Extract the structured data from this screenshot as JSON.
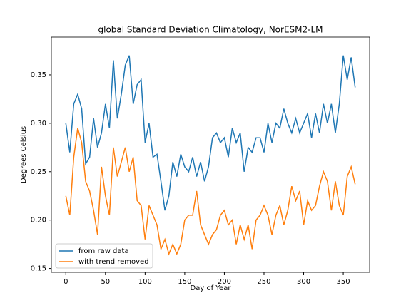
{
  "chart_data": {
    "type": "line",
    "title": "global Standard Deviation Climatology, NorESM2-LM",
    "xlabel": "Day of Year",
    "ylabel": "Degrees Celsius",
    "x": [
      0,
      5,
      10,
      15,
      20,
      25,
      30,
      35,
      40,
      45,
      50,
      55,
      60,
      65,
      70,
      75,
      80,
      85,
      90,
      95,
      100,
      105,
      110,
      115,
      120,
      125,
      130,
      135,
      140,
      145,
      150,
      155,
      160,
      165,
      170,
      175,
      180,
      185,
      190,
      195,
      200,
      205,
      210,
      215,
      220,
      225,
      230,
      235,
      240,
      245,
      250,
      255,
      260,
      265,
      270,
      275,
      280,
      285,
      290,
      295,
      300,
      305,
      310,
      315,
      320,
      325,
      330,
      335,
      340,
      345,
      350,
      355,
      360,
      365
    ],
    "series": [
      {
        "name": "from raw data",
        "color": "#1f77b4",
        "values": [
          0.3,
          0.27,
          0.32,
          0.33,
          0.315,
          0.258,
          0.265,
          0.305,
          0.275,
          0.29,
          0.32,
          0.295,
          0.365,
          0.305,
          0.33,
          0.36,
          0.37,
          0.32,
          0.34,
          0.345,
          0.28,
          0.3,
          0.265,
          0.268,
          0.24,
          0.21,
          0.225,
          0.26,
          0.245,
          0.268,
          0.255,
          0.25,
          0.265,
          0.245,
          0.26,
          0.24,
          0.255,
          0.285,
          0.29,
          0.28,
          0.285,
          0.265,
          0.295,
          0.28,
          0.29,
          0.25,
          0.275,
          0.27,
          0.285,
          0.285,
          0.27,
          0.3,
          0.28,
          0.3,
          0.295,
          0.315,
          0.3,
          0.29,
          0.305,
          0.29,
          0.3,
          0.31,
          0.285,
          0.31,
          0.29,
          0.32,
          0.3,
          0.32,
          0.29,
          0.32,
          0.37,
          0.345,
          0.368,
          0.337
        ]
      },
      {
        "name": "with trend removed",
        "color": "#ff7f0e",
        "values": [
          0.225,
          0.205,
          0.265,
          0.295,
          0.28,
          0.24,
          0.23,
          0.21,
          0.185,
          0.255,
          0.225,
          0.205,
          0.275,
          0.245,
          0.26,
          0.275,
          0.25,
          0.265,
          0.22,
          0.215,
          0.18,
          0.215,
          0.205,
          0.195,
          0.17,
          0.18,
          0.165,
          0.175,
          0.165,
          0.175,
          0.2,
          0.205,
          0.205,
          0.23,
          0.195,
          0.185,
          0.175,
          0.185,
          0.19,
          0.205,
          0.21,
          0.195,
          0.2,
          0.175,
          0.195,
          0.18,
          0.195,
          0.17,
          0.2,
          0.205,
          0.215,
          0.205,
          0.185,
          0.205,
          0.215,
          0.195,
          0.21,
          0.235,
          0.22,
          0.23,
          0.195,
          0.22,
          0.21,
          0.215,
          0.235,
          0.25,
          0.24,
          0.21,
          0.24,
          0.215,
          0.205,
          0.245,
          0.255,
          0.237
        ]
      }
    ],
    "xlim": [
      -18.25,
      383.25
    ],
    "xticks": [
      0,
      50,
      100,
      150,
      200,
      250,
      300,
      350
    ],
    "ylim": [
      0.146,
      0.389
    ],
    "yticks": [
      0.15,
      {
        "value": 0.2,
        "label": "0.20"
      },
      0.25,
      {
        "value": 0.3,
        "label": "0.30"
      },
      0.35
    ],
    "legend": "lower left"
  }
}
